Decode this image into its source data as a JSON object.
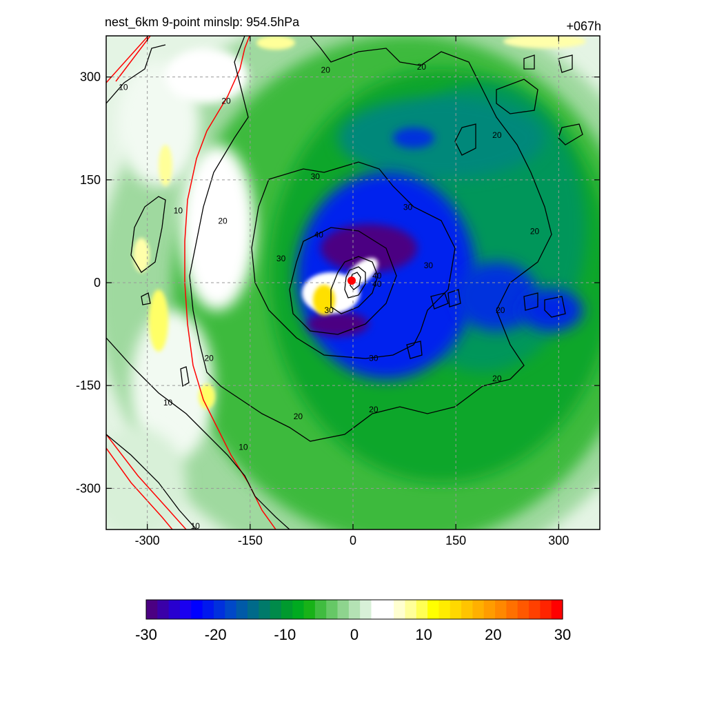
{
  "title": "nest_6km  9-point minslp: 954.5hPa",
  "forecast_hour": "+067h",
  "chart_data": {
    "type": "heatmap",
    "title": "nest_6km  9-point minslp: 954.5hPa",
    "annotation": "+067h",
    "xlim": [
      -360,
      360
    ],
    "ylim": [
      -360,
      360
    ],
    "x_ticks": [
      -300,
      -150,
      0,
      150,
      300
    ],
    "y_ticks": [
      300,
      150,
      0,
      -150,
      -300
    ],
    "x_tick_labels": [
      "-300",
      "-150",
      "0",
      "150",
      "300"
    ],
    "y_tick_labels": [
      "300",
      "150",
      "0",
      "-150",
      "-300"
    ],
    "grid": true,
    "colorbar": {
      "min": -30,
      "max": 30,
      "ticks": [
        -30,
        -20,
        -10,
        0,
        10,
        20,
        30
      ],
      "tick_labels": [
        "-30",
        "-20",
        "-10",
        "0",
        "10",
        "20",
        "30"
      ],
      "colors": [
        "#4b0082",
        "#3a00a8",
        "#2800d0",
        "#1a00f0",
        "#0000ff",
        "#0018ee",
        "#0030dd",
        "#0048c8",
        "#005aa8",
        "#006a8a",
        "#007a6a",
        "#008a4a",
        "#009a2e",
        "#00aa20",
        "#18b218",
        "#40bc40",
        "#66c866",
        "#8ed48e",
        "#b4e2b4",
        "#d8f0d8",
        "#ffffff",
        "#ffffff",
        "#ffffd0",
        "#ffff99",
        "#ffff55",
        "#ffff00",
        "#ffec00",
        "#ffd800",
        "#ffc400",
        "#ffb000",
        "#ff9c00",
        "#ff8800",
        "#ff7000",
        "#ff5800",
        "#ff4000",
        "#ff2400",
        "#ff0000"
      ]
    },
    "contour_levels": [
      10,
      20,
      30,
      40
    ],
    "contour_labels": [
      {
        "x": -335,
        "y": 285,
        "text": "10"
      },
      {
        "x": -255,
        "y": 105,
        "text": "10"
      },
      {
        "x": -185,
        "y": 265,
        "text": "20"
      },
      {
        "x": -190,
        "y": 90,
        "text": "20"
      },
      {
        "x": -105,
        "y": 35,
        "text": "30"
      },
      {
        "x": -55,
        "y": 155,
        "text": "30"
      },
      {
        "x": -50,
        "y": 70,
        "text": "40"
      },
      {
        "x": -35,
        "y": -40,
        "text": "30"
      },
      {
        "x": 35,
        "y": 10,
        "text": "40"
      },
      {
        "x": 35,
        "y": -2,
        "text": "40"
      },
      {
        "x": 80,
        "y": 110,
        "text": "30"
      },
      {
        "x": 110,
        "y": 25,
        "text": "30"
      },
      {
        "x": 30,
        "y": -110,
        "text": "30"
      },
      {
        "x": -210,
        "y": -110,
        "text": "20"
      },
      {
        "x": -270,
        "y": -175,
        "text": "10"
      },
      {
        "x": -160,
        "y": -240,
        "text": "10"
      },
      {
        "x": -80,
        "y": -195,
        "text": "20"
      },
      {
        "x": 30,
        "y": -185,
        "text": "20"
      },
      {
        "x": 210,
        "y": -140,
        "text": "20"
      },
      {
        "x": 215,
        "y": -40,
        "text": "20"
      },
      {
        "x": 265,
        "y": 75,
        "text": "20"
      },
      {
        "x": 210,
        "y": 215,
        "text": "20"
      },
      {
        "x": -40,
        "y": 310,
        "text": "20"
      },
      {
        "x": 100,
        "y": 315,
        "text": "20"
      },
      {
        "x": -230,
        "y": -355,
        "text": "10"
      }
    ],
    "center_marker": {
      "x": -2,
      "y": 3
    }
  }
}
